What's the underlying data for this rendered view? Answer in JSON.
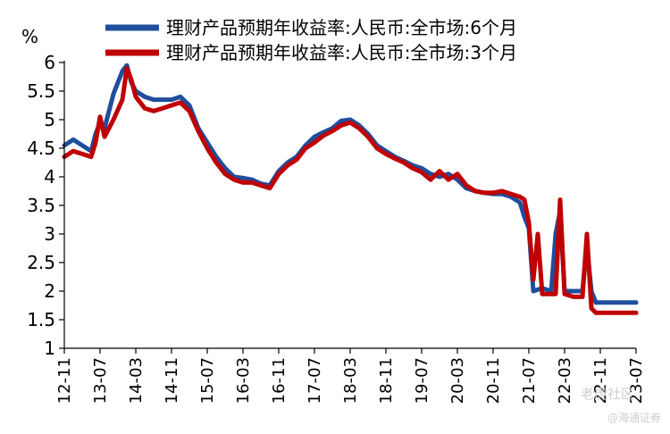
{
  "chart_data": {
    "type": "line",
    "y_unit": "%",
    "ylim": [
      1,
      6
    ],
    "yticks": [
      "1",
      "1.5",
      "2",
      "2.5",
      "3",
      "3.5",
      "4",
      "4.5",
      "5",
      "5.5",
      "6"
    ],
    "x_ticks": [
      "12-11",
      "13-07",
      "14-03",
      "14-11",
      "15-07",
      "16-03",
      "16-11",
      "17-07",
      "18-03",
      "18-11",
      "19-07",
      "20-03",
      "20-11",
      "21-07",
      "22-03",
      "22-11",
      "23-07"
    ],
    "x_domain": [
      "2012-11",
      "2023-07"
    ],
    "grid": false,
    "legend_position": "top",
    "series": [
      {
        "name": "理财产品预期年收益率:人民币:全市场:6个月",
        "color": "#1f4e9c",
        "points": [
          [
            "2012-11",
            4.55
          ],
          [
            "2013-01",
            4.65
          ],
          [
            "2013-03",
            4.55
          ],
          [
            "2013-05",
            4.45
          ],
          [
            "2013-06",
            4.75
          ],
          [
            "2013-07",
            4.95
          ],
          [
            "2013-08",
            4.85
          ],
          [
            "2013-10",
            5.45
          ],
          [
            "2013-12",
            5.85
          ],
          [
            "2014-01",
            5.95
          ],
          [
            "2014-02",
            5.65
          ],
          [
            "2014-03",
            5.5
          ],
          [
            "2014-05",
            5.4
          ],
          [
            "2014-07",
            5.35
          ],
          [
            "2014-09",
            5.35
          ],
          [
            "2014-11",
            5.35
          ],
          [
            "2015-01",
            5.4
          ],
          [
            "2015-03",
            5.25
          ],
          [
            "2015-05",
            4.85
          ],
          [
            "2015-07",
            4.6
          ],
          [
            "2015-09",
            4.35
          ],
          [
            "2015-11",
            4.15
          ],
          [
            "2016-01",
            4.0
          ],
          [
            "2016-03",
            3.98
          ],
          [
            "2016-05",
            3.95
          ],
          [
            "2016-07",
            3.88
          ],
          [
            "2016-09",
            3.85
          ],
          [
            "2016-11",
            4.1
          ],
          [
            "2017-01",
            4.25
          ],
          [
            "2017-03",
            4.35
          ],
          [
            "2017-05",
            4.55
          ],
          [
            "2017-07",
            4.7
          ],
          [
            "2017-09",
            4.78
          ],
          [
            "2017-11",
            4.85
          ],
          [
            "2018-01",
            4.98
          ],
          [
            "2018-03",
            5.0
          ],
          [
            "2018-05",
            4.9
          ],
          [
            "2018-07",
            4.75
          ],
          [
            "2018-09",
            4.55
          ],
          [
            "2018-11",
            4.45
          ],
          [
            "2019-01",
            4.35
          ],
          [
            "2019-03",
            4.28
          ],
          [
            "2019-05",
            4.2
          ],
          [
            "2019-07",
            4.15
          ],
          [
            "2019-09",
            4.05
          ],
          [
            "2019-11",
            4.0
          ],
          [
            "2020-01",
            4.05
          ],
          [
            "2020-03",
            3.95
          ],
          [
            "2020-05",
            3.8
          ],
          [
            "2020-07",
            3.75
          ],
          [
            "2020-09",
            3.72
          ],
          [
            "2020-11",
            3.7
          ],
          [
            "2021-01",
            3.7
          ],
          [
            "2021-03",
            3.65
          ],
          [
            "2021-05",
            3.55
          ],
          [
            "2021-06",
            3.3
          ],
          [
            "2021-07",
            3.1
          ],
          [
            "2021-08",
            2.0
          ],
          [
            "2021-10",
            2.05
          ],
          [
            "2021-12",
            2.0
          ],
          [
            "2022-01",
            3.0
          ],
          [
            "2022-02",
            3.4
          ],
          [
            "2022-03",
            2.0
          ],
          [
            "2022-04",
            2.0
          ],
          [
            "2022-05",
            2.0
          ],
          [
            "2022-07",
            2.0
          ],
          [
            "2022-08",
            2.8
          ],
          [
            "2022-09",
            2.0
          ],
          [
            "2022-10",
            1.8
          ],
          [
            "2022-12",
            1.8
          ],
          [
            "2023-03",
            1.8
          ],
          [
            "2023-07",
            1.8
          ]
        ]
      },
      {
        "name": "理财产品预期年收益率:人民币:全市场:3个月",
        "color": "#c00000",
        "points": [
          [
            "2012-11",
            4.35
          ],
          [
            "2013-01",
            4.45
          ],
          [
            "2013-03",
            4.4
          ],
          [
            "2013-05",
            4.35
          ],
          [
            "2013-06",
            4.6
          ],
          [
            "2013-07",
            5.05
          ],
          [
            "2013-08",
            4.7
          ],
          [
            "2013-10",
            5.0
          ],
          [
            "2013-12",
            5.35
          ],
          [
            "2014-01",
            5.9
          ],
          [
            "2014-02",
            5.7
          ],
          [
            "2014-03",
            5.4
          ],
          [
            "2014-05",
            5.2
          ],
          [
            "2014-07",
            5.15
          ],
          [
            "2014-09",
            5.2
          ],
          [
            "2014-11",
            5.25
          ],
          [
            "2015-01",
            5.3
          ],
          [
            "2015-03",
            5.15
          ],
          [
            "2015-05",
            4.8
          ],
          [
            "2015-07",
            4.5
          ],
          [
            "2015-09",
            4.25
          ],
          [
            "2015-11",
            4.05
          ],
          [
            "2016-01",
            3.95
          ],
          [
            "2016-03",
            3.9
          ],
          [
            "2016-05",
            3.9
          ],
          [
            "2016-07",
            3.85
          ],
          [
            "2016-09",
            3.8
          ],
          [
            "2016-11",
            4.05
          ],
          [
            "2017-01",
            4.2
          ],
          [
            "2017-03",
            4.3
          ],
          [
            "2017-05",
            4.5
          ],
          [
            "2017-07",
            4.6
          ],
          [
            "2017-09",
            4.72
          ],
          [
            "2017-11",
            4.8
          ],
          [
            "2018-01",
            4.9
          ],
          [
            "2018-03",
            4.95
          ],
          [
            "2018-05",
            4.85
          ],
          [
            "2018-07",
            4.7
          ],
          [
            "2018-09",
            4.5
          ],
          [
            "2018-11",
            4.4
          ],
          [
            "2019-01",
            4.32
          ],
          [
            "2019-03",
            4.25
          ],
          [
            "2019-05",
            4.15
          ],
          [
            "2019-07",
            4.08
          ],
          [
            "2019-09",
            3.95
          ],
          [
            "2019-11",
            4.1
          ],
          [
            "2020-01",
            3.95
          ],
          [
            "2020-03",
            4.05
          ],
          [
            "2020-05",
            3.85
          ],
          [
            "2020-07",
            3.75
          ],
          [
            "2020-09",
            3.72
          ],
          [
            "2020-11",
            3.72
          ],
          [
            "2021-01",
            3.75
          ],
          [
            "2021-03",
            3.7
          ],
          [
            "2021-05",
            3.65
          ],
          [
            "2021-06",
            3.6
          ],
          [
            "2021-07",
            3.2
          ],
          [
            "2021-08",
            2.2
          ],
          [
            "2021-09",
            3.0
          ],
          [
            "2021-10",
            1.95
          ],
          [
            "2021-12",
            1.95
          ],
          [
            "2022-01",
            1.95
          ],
          [
            "2022-02",
            3.6
          ],
          [
            "2022-03",
            1.95
          ],
          [
            "2022-05",
            1.9
          ],
          [
            "2022-07",
            1.9
          ],
          [
            "2022-08",
            3.0
          ],
          [
            "2022-09",
            1.7
          ],
          [
            "2022-10",
            1.62
          ],
          [
            "2022-12",
            1.62
          ],
          [
            "2023-03",
            1.62
          ],
          [
            "2023-07",
            1.62
          ]
        ]
      }
    ]
  },
  "watermark": {
    "line1": "老虎社区",
    "line2": "@海通证券"
  }
}
